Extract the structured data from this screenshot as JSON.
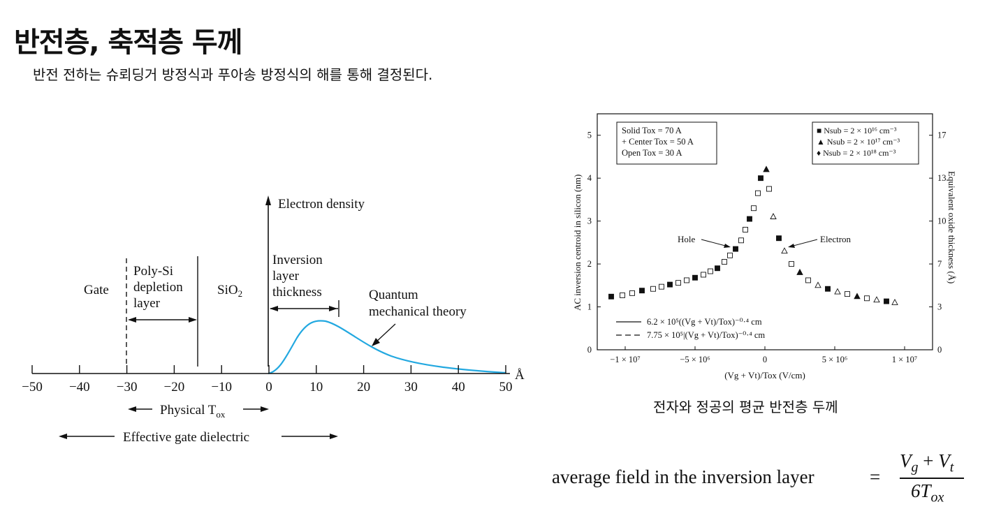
{
  "slide": {
    "title": "반전층, 축적층 두께",
    "subtitle": "반전 전하는 슈뢰딩거 방정식과 푸아송 방정식의 해를 통해 결정된다.",
    "caption": "전자와 정공의 평균 반전층 두께"
  },
  "left_diagram": {
    "regions": {
      "gate": "Gate",
      "polysi_1": "Poly-Si",
      "polysi_2": "depletion",
      "polysi_3": "layer",
      "sio2": "SiO",
      "sio2_sub": "2",
      "inv_1": "Inversion",
      "inv_2": "layer",
      "inv_3": "thickness"
    },
    "ylabel": "Electron density",
    "curve_label_1": "Quantum",
    "curve_label_2": "mechanical theory",
    "axis_unit": "Å",
    "ticks": [
      "−50",
      "−40",
      "−30",
      "−20",
      "−10",
      "0",
      "10",
      "20",
      "30",
      "40",
      "50"
    ],
    "physical_tox": "Physical T",
    "physical_tox_sub": "ox",
    "effective": "Effective gate dielectric",
    "curve_color": "#22a8e0"
  },
  "chart_data": {
    "type": "scatter",
    "title": "",
    "xlabel": "(Vg + Vt)/Tox (V/cm)",
    "ylabel": "AC inversion centroid in silicon (nm)",
    "y2label": "Equivalent oxide thickness (Å)",
    "xlim": [
      -12000000,
      12000000
    ],
    "ylim": [
      0,
      5.5
    ],
    "xticks": [
      "−1 × 10⁷",
      "−5 × 10⁶",
      "0",
      "5 × 10⁶",
      "1 × 10⁷"
    ],
    "yticks": [
      "0",
      "1",
      "2",
      "3",
      "4",
      "5"
    ],
    "y2ticks": [
      "0",
      "3",
      "7",
      "10",
      "13",
      "17"
    ],
    "legend_style": [
      "Solid   Tox = 70 A",
      "+ Center   Tox = 50 A",
      "Open   Tox = 30 A"
    ],
    "legend_nsub": [
      "■ Nsub = 2 × 10¹⁶ cm⁻³",
      "▲ Nsub = 2 × 10¹⁷ cm⁻³",
      "♦ Nsub = 2 × 10¹⁸ cm⁻³"
    ],
    "annotations": [
      "Hole",
      "Electron"
    ],
    "fit_lines": [
      "6.2 × 10⁵((Vg + Vt)/Tox)⁻⁰·⁴ cm",
      "7.75 × 10⁵|(Vg + Vt)/Tox)⁻⁰·⁴ cm"
    ],
    "series": [
      {
        "name": "Hole",
        "x": [
          -11000000,
          -10200000,
          -9500000,
          -8800000,
          -8000000,
          -7400000,
          -6800000,
          -6200000,
          -5600000,
          -5000000,
          -4400000,
          -3900000,
          -3400000,
          -2900000,
          -2500000,
          -2100000,
          -1700000,
          -1400000,
          -1100000,
          -800000,
          -500000,
          -300000
        ],
        "y": [
          1.24,
          1.27,
          1.32,
          1.38,
          1.42,
          1.47,
          1.52,
          1.56,
          1.62,
          1.68,
          1.75,
          1.83,
          1.9,
          2.05,
          2.2,
          2.35,
          2.55,
          2.8,
          3.05,
          3.3,
          3.65,
          4.0
        ]
      },
      {
        "name": "Electron",
        "x": [
          100000,
          300000,
          600000,
          1000000,
          1400000,
          1900000,
          2500000,
          3100000,
          3800000,
          4500000,
          5200000,
          5900000,
          6600000,
          7300000,
          8000000,
          8700000,
          9300000
        ],
        "y": [
          4.2,
          3.75,
          3.1,
          2.6,
          2.3,
          2.0,
          1.8,
          1.62,
          1.5,
          1.42,
          1.35,
          1.3,
          1.24,
          1.2,
          1.16,
          1.13,
          1.1
        ]
      }
    ]
  },
  "formula": {
    "lhs": "average field in the inversion layer",
    "eq": "=",
    "num_v1": "V",
    "num_g": "g",
    "num_plus": " + ",
    "num_v2": "V",
    "num_t": "t",
    "den_6t": "6T",
    "den_ox": "ox"
  }
}
